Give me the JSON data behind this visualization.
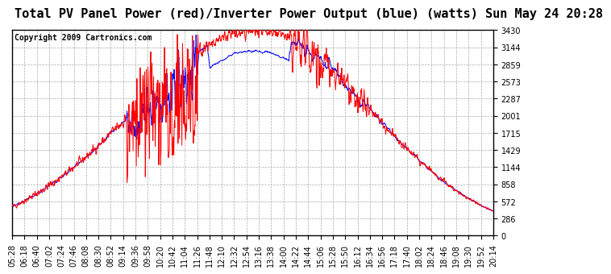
{
  "title": "Total PV Panel Power (red)/Inverter Power Output (blue) (watts) Sun May 24 20:28",
  "copyright": "Copyright 2009 Cartronics.com",
  "ylabel_values": [
    0.0,
    285.9,
    571.7,
    857.6,
    1143.5,
    1429.3,
    1715.2,
    2001.0,
    2286.9,
    2572.8,
    2858.6,
    3144.5,
    3430.4
  ],
  "ymax": 3430.4,
  "ymin": 0.0,
  "bg_color": "#ffffff",
  "plot_bg_color": "#ffffff",
  "grid_color": "#aaaaaa",
  "red_color": "#ff0000",
  "blue_color": "#0000ff",
  "title_fontsize": 11,
  "copyright_fontsize": 7,
  "tick_fontsize": 7,
  "x_labels": [
    "05:28",
    "06:18",
    "06:40",
    "07:02",
    "07:24",
    "07:46",
    "08:08",
    "08:30",
    "08:52",
    "09:14",
    "09:36",
    "09:58",
    "10:20",
    "10:42",
    "11:04",
    "11:26",
    "11:48",
    "12:10",
    "12:32",
    "12:54",
    "13:16",
    "13:38",
    "14:00",
    "14:22",
    "14:44",
    "15:06",
    "15:28",
    "15:50",
    "16:12",
    "16:34",
    "16:56",
    "17:18",
    "17:40",
    "18:02",
    "18:24",
    "18:46",
    "19:08",
    "19:30",
    "19:52",
    "20:14"
  ]
}
